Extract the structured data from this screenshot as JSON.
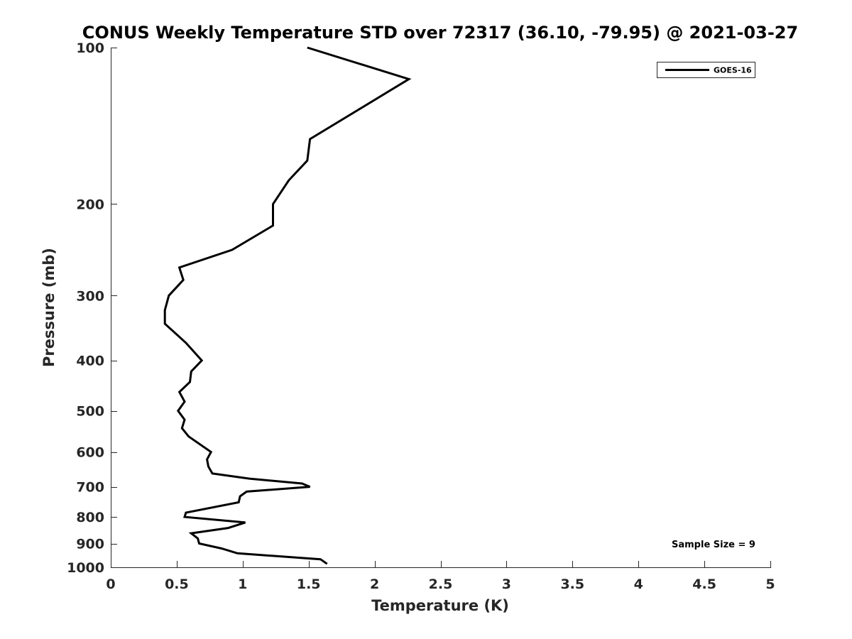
{
  "chart_data": {
    "type": "line",
    "title": "CONUS Weekly Temperature STD over 72317 (36.10, -79.95) @ 2021-03-27",
    "xlabel": "Temperature (K)",
    "ylabel": "Pressure (mb)",
    "xlim": [
      0,
      5
    ],
    "ylim": [
      100,
      1000
    ],
    "y_scale": "log",
    "y_reversed": true,
    "x_ticks": [
      0,
      0.5,
      1,
      1.5,
      2,
      2.5,
      3,
      3.5,
      4,
      4.5,
      5
    ],
    "x_tick_labels": [
      "0",
      "0.5",
      "1",
      "1.5",
      "2",
      "2.5",
      "3",
      "3.5",
      "4",
      "4.5",
      "5"
    ],
    "y_ticks": [
      100,
      200,
      300,
      400,
      500,
      600,
      700,
      800,
      900,
      1000
    ],
    "y_tick_labels": [
      "100",
      "200",
      "300",
      "400",
      "500",
      "600",
      "700",
      "800",
      "900",
      "1000"
    ],
    "grid": false,
    "legend_position": "top-right",
    "annotation": "Sample Size = 9",
    "series": [
      {
        "name": "GOES-16",
        "color": "#000000",
        "x": [
          1.49,
          2.26,
          1.51,
          1.49,
          1.35,
          1.23,
          1.23,
          0.92,
          0.52,
          0.55,
          0.44,
          0.41,
          0.41,
          0.57,
          0.69,
          0.61,
          0.6,
          0.52,
          0.56,
          0.51,
          0.56,
          0.54,
          0.59,
          0.76,
          0.73,
          0.74,
          0.77,
          1.05,
          1.45,
          1.51,
          1.03,
          0.98,
          0.97,
          0.57,
          0.56,
          1.02,
          0.89,
          0.61,
          0.66,
          0.67,
          0.84,
          0.96,
          1.59,
          1.64
        ],
        "y": [
          100,
          115,
          150,
          165,
          180,
          200,
          220,
          245,
          265,
          280,
          300,
          320,
          340,
          370,
          400,
          420,
          440,
          460,
          480,
          500,
          520,
          540,
          560,
          600,
          620,
          640,
          660,
          675,
          690,
          700,
          715,
          730,
          750,
          785,
          800,
          820,
          840,
          860,
          880,
          900,
          920,
          940,
          965,
          985
        ]
      }
    ]
  }
}
